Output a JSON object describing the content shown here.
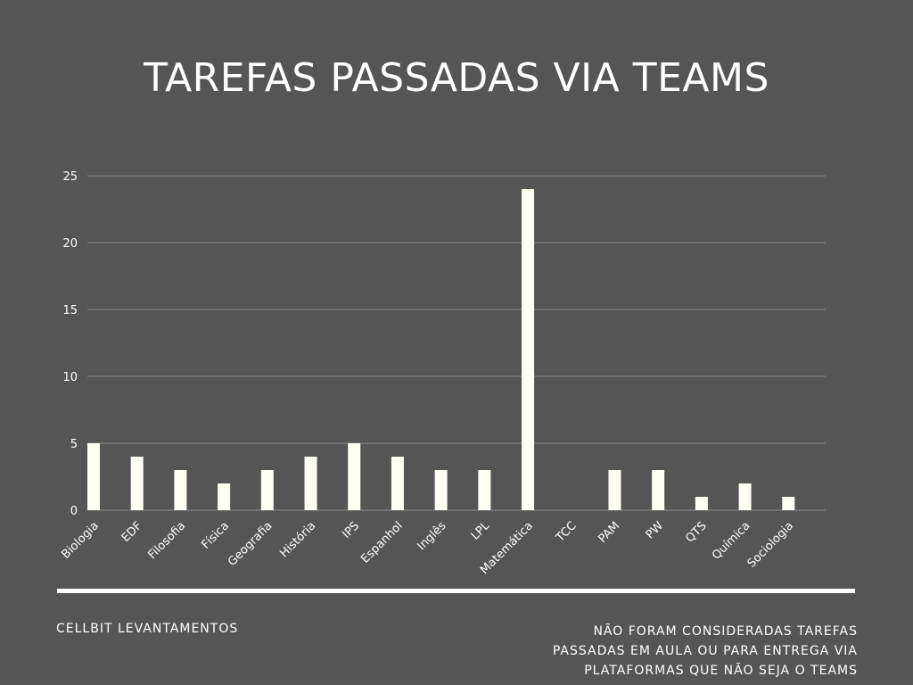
{
  "page": {
    "title": "TAREFAS PASSADAS VIA TEAMS",
    "footer_left": "CELLBIT LEVANTAMENTOS",
    "footer_right_lines": [
      "NÃO FORAM CONSIDERADAS TAREFAS",
      "PASSADAS EM AULA OU PARA ENTREGA VIA",
      "PLATAFORMAS QUE NÃO SEJA O TEAMS"
    ]
  },
  "colors": {
    "background": "#555555",
    "bar": "#fffff5",
    "grid": "#8a8a8a",
    "text": "#ffffff"
  },
  "chart_data": {
    "type": "bar",
    "title": "TAREFAS PASSADAS VIA TEAMS",
    "categories": [
      "Biologia",
      "EDF",
      "Filosofia",
      "Física",
      "Geografia",
      "História",
      "IPS",
      "Espanhol",
      "Inglês",
      "LPL",
      "Matemática",
      "TCC",
      "PAM",
      "PW",
      "QTS",
      "Química",
      "Sociologia"
    ],
    "values": [
      5,
      4,
      3,
      2,
      3,
      4,
      5,
      4,
      3,
      3,
      24,
      0,
      3,
      3,
      1,
      2,
      1
    ],
    "ylim": [
      0,
      25
    ],
    "yticks": [
      0,
      5,
      10,
      15,
      20,
      25
    ],
    "xlabel": "",
    "ylabel": "",
    "grid": true,
    "legend": "none"
  }
}
